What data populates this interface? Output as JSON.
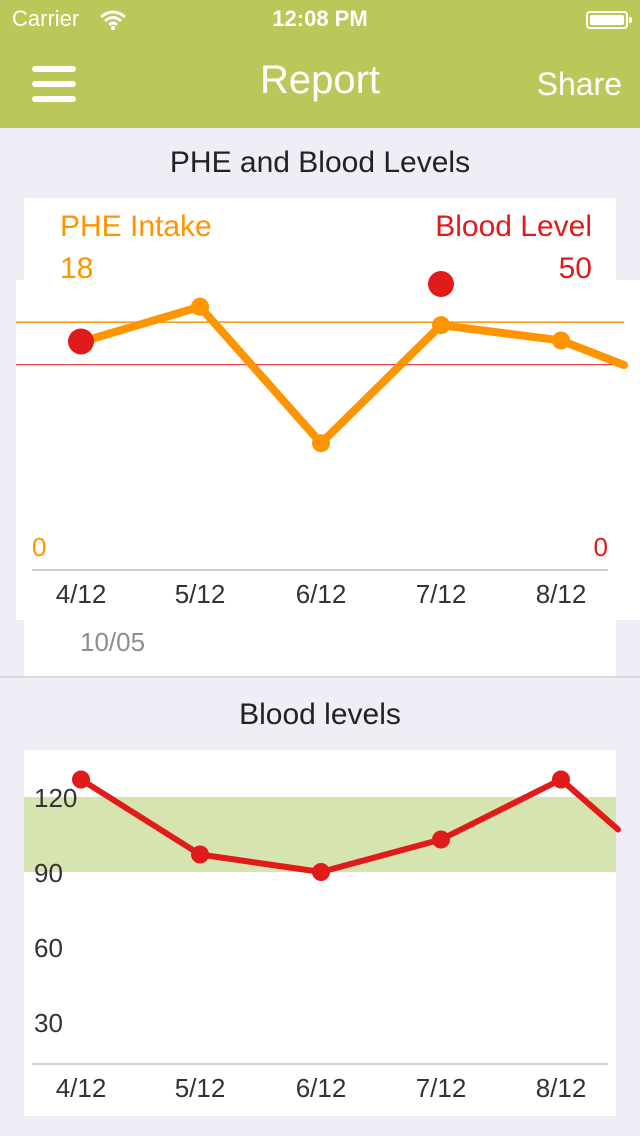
{
  "status_bar": {
    "carrier": "Carrier",
    "time": "12:08 PM"
  },
  "nav": {
    "title": "Report",
    "share_label": "Share",
    "menu_icon": "hamburger-menu-icon"
  },
  "phe_section": {
    "title": "PHE and Blood Levels",
    "phe_label": "PHE Intake",
    "phe_value": "18",
    "blood_label": "Blood Level",
    "blood_value": "50",
    "left_axis_min": "0",
    "right_axis_min": "0",
    "date": "10/05"
  },
  "blood_section": {
    "title": "Blood levels"
  },
  "colors": {
    "header": "#bcc75a",
    "phe_line": "#fd9400",
    "blood": "#e11a1a",
    "target_band": "#d6e5b0"
  },
  "chart_data": [
    {
      "type": "line",
      "title": "PHE and Blood Levels",
      "categories": [
        "4/12",
        "5/12",
        "6/12",
        "7/12",
        "8/12"
      ],
      "series": [
        {
          "name": "PHE Intake",
          "values": [
            13.5,
            15.8,
            6.9,
            14.6,
            13.6
          ]
        },
        {
          "name": "Blood Level",
          "values": [
            37.6,
            null,
            null,
            48.0,
            null
          ]
        }
      ],
      "phe_reference": 14.8,
      "blood_reference": 33.4,
      "ylim_phe": [
        0,
        18
      ],
      "ylim_blood": [
        0,
        50
      ]
    },
    {
      "type": "line",
      "title": "Blood levels",
      "categories": [
        "4/12",
        "5/12",
        "6/12",
        "7/12",
        "8/12"
      ],
      "series": [
        {
          "name": "Blood levels",
          "values": [
            127,
            97,
            90,
            103,
            127
          ]
        }
      ],
      "yticks": [
        30,
        60,
        90,
        120
      ],
      "target_range": [
        90,
        120
      ],
      "ylim": [
        12,
        138
      ]
    }
  ]
}
